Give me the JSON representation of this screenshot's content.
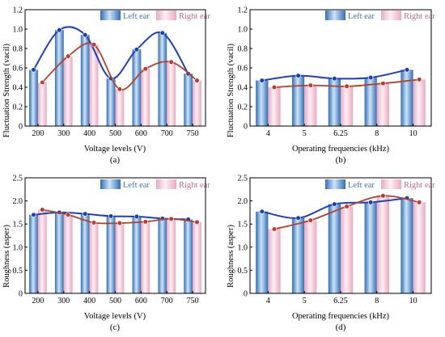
{
  "chart_data": [
    {
      "type": "bar",
      "panel_label": "(a)",
      "xlabel": "Voltage levels (V)",
      "ylabel": "Fluctuation Strength (vacil)",
      "ylim": [
        0,
        1.2
      ],
      "yticks": [
        "0",
        "0.2",
        "0.4",
        "0.6",
        "0.8",
        "1.0",
        "1.2"
      ],
      "categories": [
        "200",
        "300",
        "400",
        "500",
        "600",
        "700",
        "750"
      ],
      "legend_position": "top-right",
      "series": [
        {
          "name": "Left ear",
          "color": "#4a8fd4",
          "values": [
            0.58,
            0.99,
            0.94,
            0.49,
            0.79,
            0.96,
            0.54
          ]
        },
        {
          "name": "Right ear",
          "color": "#f2c4d2",
          "values": [
            0.45,
            0.72,
            0.84,
            0.38,
            0.59,
            0.66,
            0.47
          ]
        }
      ]
    },
    {
      "type": "bar",
      "panel_label": "(b)",
      "xlabel": "Operating frequencies (kHz)",
      "ylabel": "Fluctuation Strength (vacil)",
      "ylim": [
        0,
        1.2
      ],
      "yticks": [
        "0",
        "0.2",
        "0.4",
        "0.6",
        "0.8",
        "1.0",
        "1.2"
      ],
      "categories": [
        "4",
        "5",
        "6.25",
        "8",
        "10"
      ],
      "legend_position": "top-right",
      "series": [
        {
          "name": "Left ear",
          "color": "#4a8fd4",
          "values": [
            0.47,
            0.52,
            0.49,
            0.5,
            0.58
          ]
        },
        {
          "name": "Right ear",
          "color": "#f2c4d2",
          "values": [
            0.4,
            0.42,
            0.41,
            0.44,
            0.48
          ]
        }
      ]
    },
    {
      "type": "bar",
      "panel_label": "(c)",
      "xlabel": "Voltage levels (V)",
      "ylabel": "Roughness (asper)",
      "ylim": [
        0,
        2.5
      ],
      "yticks": [
        "0",
        "0.5",
        "1.0",
        "1.5",
        "2.0",
        "2.5"
      ],
      "categories": [
        "200",
        "300",
        "400",
        "500",
        "600",
        "700",
        "750"
      ],
      "legend_position": "top-right",
      "series": [
        {
          "name": "Left ear",
          "color": "#4a8fd4",
          "values": [
            1.7,
            1.75,
            1.72,
            1.67,
            1.66,
            1.62,
            1.6
          ]
        },
        {
          "name": "Right ear",
          "color": "#f2c4d2",
          "values": [
            1.81,
            1.7,
            1.53,
            1.52,
            1.55,
            1.61,
            1.54
          ]
        }
      ]
    },
    {
      "type": "bar",
      "panel_label": "(d)",
      "xlabel": "Operating frequencies (kHz)",
      "ylabel": "Roughness (asper)",
      "ylim": [
        0,
        2.5
      ],
      "yticks": [
        "0",
        "0.5",
        "1.0",
        "1.5",
        "2.0",
        "2.5"
      ],
      "categories": [
        "4",
        "5",
        "6.25",
        "8",
        "10"
      ],
      "legend_position": "top-right",
      "series": [
        {
          "name": "Left ear",
          "color": "#4a8fd4",
          "values": [
            1.77,
            1.63,
            1.93,
            1.97,
            2.06
          ]
        },
        {
          "name": "Right ear",
          "color": "#f2c4d2",
          "values": [
            1.39,
            1.58,
            1.88,
            2.11,
            1.97
          ]
        }
      ]
    }
  ]
}
